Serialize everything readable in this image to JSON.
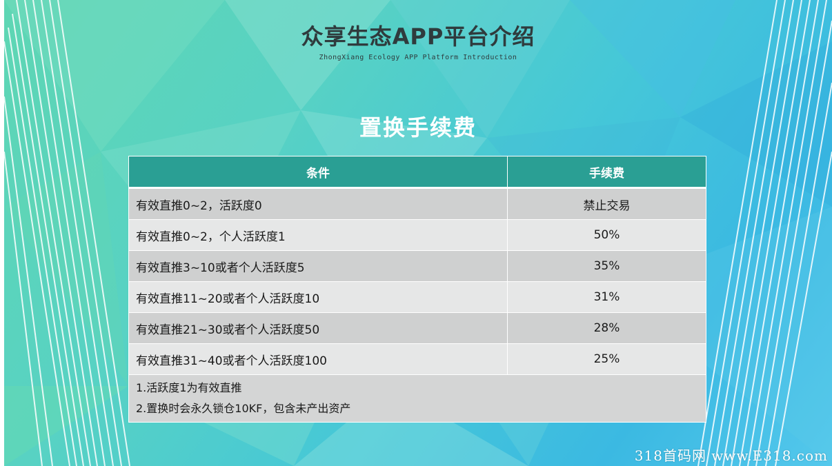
{
  "header": {
    "title": "众享生态APP平台介绍",
    "subtitle": "ZhongXiang Ecology APP Platform Introduction"
  },
  "section": {
    "heading": "置换手续费"
  },
  "table": {
    "headers": {
      "condition": "条件",
      "fee": "手续费"
    },
    "rows": [
      {
        "condition": "有效直推0~2，活跃度0",
        "fee": "禁止交易"
      },
      {
        "condition": "有效直推0~2，个人活跃度1",
        "fee": "50%"
      },
      {
        "condition": "有效直推3~10或者个人活跃度5",
        "fee": "35%"
      },
      {
        "condition": "有效直推11~20或者个人活跃度10",
        "fee": "31%"
      },
      {
        "condition": "有效直推21~30或者个人活跃度50",
        "fee": "28%"
      },
      {
        "condition": "有效直推31~40或者个人活跃度100",
        "fee": "25%"
      }
    ],
    "notes": [
      "1.活跃度1为有效直推",
      "2.置换时会永久锁仓10KF，包含未产出资产"
    ]
  },
  "watermark": "318首码网 www.E318.com",
  "colors": {
    "table_header": "#2a9f94",
    "row_odd": "#cfd0d0",
    "row_even": "#e6e7e7",
    "title_text": "#2f3b3d"
  }
}
